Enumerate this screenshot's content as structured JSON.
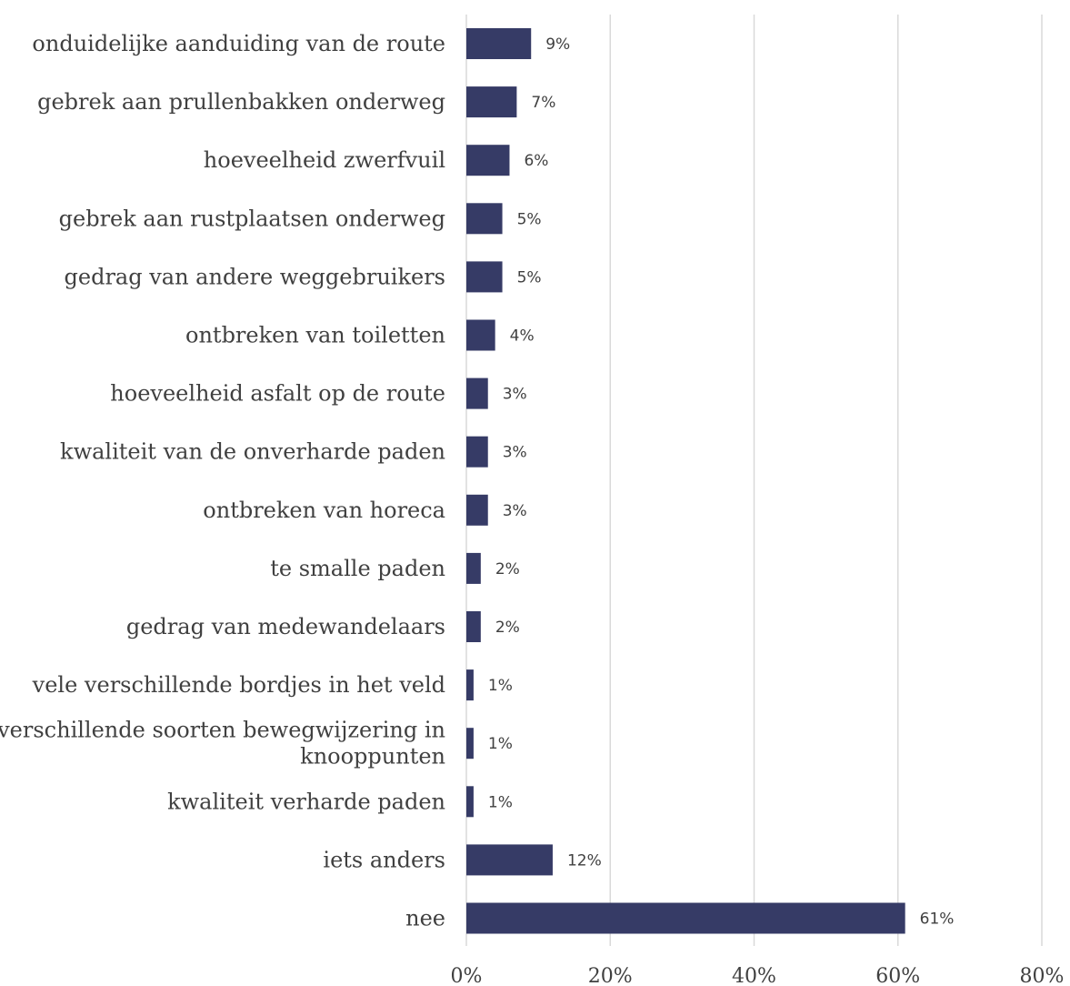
{
  "chart_data": {
    "type": "bar",
    "orientation": "horizontal",
    "categories": [
      [
        "onduidelijke aanduiding van de route"
      ],
      [
        "gebrek aan prullenbakken onderweg"
      ],
      [
        "hoeveelheid zwerfvuil"
      ],
      [
        "gebrek aan rustplaatsen onderweg"
      ],
      [
        "gedrag van andere weggebruikers"
      ],
      [
        "ontbreken van toiletten"
      ],
      [
        "hoeveelheid asfalt op de route"
      ],
      [
        "kwaliteit van de onverharde paden"
      ],
      [
        "ontbreken van horeca"
      ],
      [
        "te smalle paden"
      ],
      [
        "gedrag van medewandelaars"
      ],
      [
        "vele verschillende bordjes in het veld"
      ],
      [
        "verschillende soorten bewegwijzering in",
        "knooppunten"
      ],
      [
        "kwaliteit verharde paden"
      ],
      [
        "iets anders"
      ],
      [
        "nee"
      ]
    ],
    "values": [
      9,
      7,
      6,
      5,
      5,
      4,
      3,
      3,
      3,
      2,
      2,
      1,
      1,
      1,
      12,
      61
    ],
    "data_labels": [
      "9%",
      "7%",
      "6%",
      "5%",
      "5%",
      "4%",
      "3%",
      "3%",
      "3%",
      "2%",
      "2%",
      "1%",
      "1%",
      "1%",
      "12%",
      "61%"
    ],
    "x_ticks": [
      "0%",
      "20%",
      "40%",
      "60%",
      "80%"
    ],
    "x_tick_values": [
      0,
      20,
      40,
      60,
      80
    ],
    "xlim": [
      0,
      80
    ],
    "grid": "vertical",
    "bar_color": "#363b66",
    "grid_color": "#d9d9d9",
    "text_color": "#404040"
  }
}
